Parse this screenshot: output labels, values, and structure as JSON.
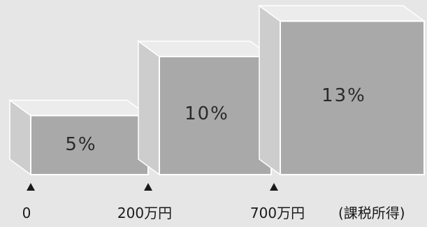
{
  "chart_data": {
    "type": "bar",
    "title": "",
    "xlabel": "(課税所得)",
    "ylabel": "",
    "grid": false,
    "bars": [
      {
        "from_label": "0",
        "to_label": "200万円",
        "value": 5,
        "label": "5%"
      },
      {
        "from_label": "200万円",
        "to_label": "700万円",
        "value": 10,
        "label": "10%"
      },
      {
        "from_label": "700万円",
        "to_label": "",
        "value": 13,
        "label": "13%"
      }
    ],
    "tick_labels": [
      "0",
      "200万円",
      "700万円"
    ],
    "ylim": [
      0,
      13
    ]
  },
  "colors": {
    "background": "#e6e6e6",
    "block_front": "#a9a9a9",
    "block_top": "#ececec",
    "block_side": "#cdcdcd",
    "text": "#1a1a1a"
  }
}
